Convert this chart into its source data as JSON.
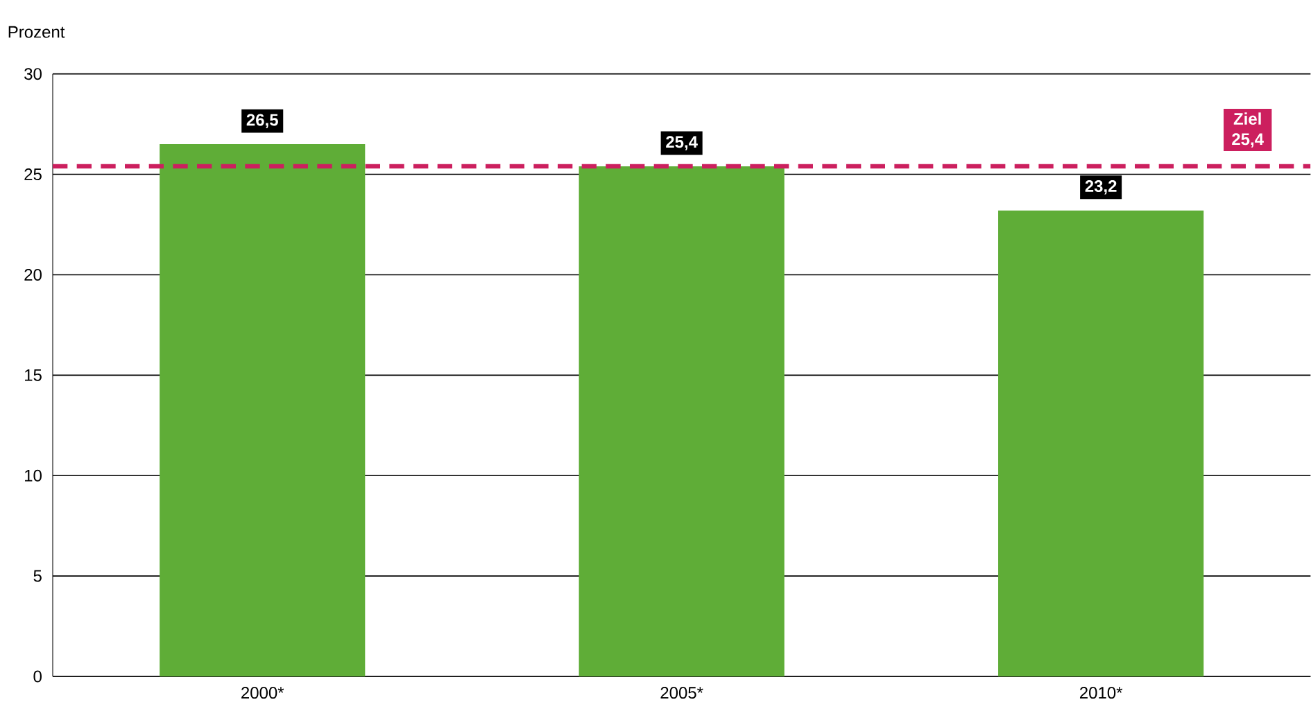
{
  "chart_data": {
    "type": "bar",
    "ylabel": "Prozent",
    "categories": [
      "2000*",
      "2005*",
      "2010*"
    ],
    "values": [
      26.5,
      25.4,
      23.2
    ],
    "color": "#5fad37",
    "value_labels": [
      "26,5",
      "25,4",
      "23,2"
    ],
    "ylim": [
      0,
      30
    ],
    "yticks": [
      0,
      5,
      10,
      15,
      20,
      25,
      30
    ],
    "grid": "y",
    "ref_lines": [
      {
        "axis": "y",
        "value": 25.4,
        "label": "Ziel 25,4",
        "color": "#cc1f5e",
        "line_style": "dashed"
      }
    ]
  }
}
